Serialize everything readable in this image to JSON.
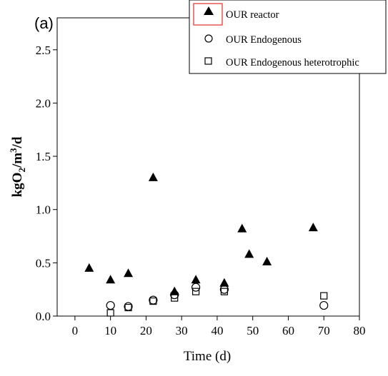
{
  "panel_label": "(a)",
  "chart_data": {
    "type": "scatter",
    "xlabel": "Time (d)",
    "ylabel_parts": {
      "base": "kgO",
      "sub": "2",
      "mid": "/m",
      "sup": "3",
      "tail": "/d"
    },
    "xlim": [
      -5,
      80
    ],
    "ylim": [
      0,
      2.8
    ],
    "xticks": [
      0,
      10,
      20,
      30,
      40,
      50,
      60,
      70,
      80
    ],
    "yticks": [
      0.0,
      0.5,
      1.0,
      1.5,
      2.0,
      2.5
    ],
    "xtick_labels": [
      "0",
      "10",
      "20",
      "30",
      "40",
      "50",
      "60",
      "70",
      "80"
    ],
    "ytick_labels": [
      "0.0",
      "0.5",
      "1.0",
      "1.5",
      "2.0",
      "2.5"
    ],
    "legend_position": "top-right",
    "series": [
      {
        "name": "OUR reactor",
        "marker": "triangle-filled",
        "x": [
          4,
          10,
          15,
          22,
          28,
          34,
          42,
          47,
          49,
          54,
          67
        ],
        "y": [
          0.45,
          0.34,
          0.4,
          1.3,
          0.23,
          0.34,
          0.31,
          0.82,
          0.58,
          0.51,
          0.83
        ]
      },
      {
        "name": "OUR Endogenous",
        "marker": "circle-open",
        "x": [
          10,
          15,
          22,
          28,
          34,
          42,
          70
        ],
        "y": [
          0.1,
          0.09,
          0.15,
          0.2,
          0.27,
          0.25,
          0.1
        ]
      },
      {
        "name": "OUR Endogenous heterotrophic",
        "marker": "square-open",
        "x": [
          10,
          15,
          22,
          28,
          34,
          42,
          70
        ],
        "y": [
          0.03,
          0.08,
          0.14,
          0.17,
          0.23,
          0.23,
          0.19
        ]
      }
    ]
  }
}
